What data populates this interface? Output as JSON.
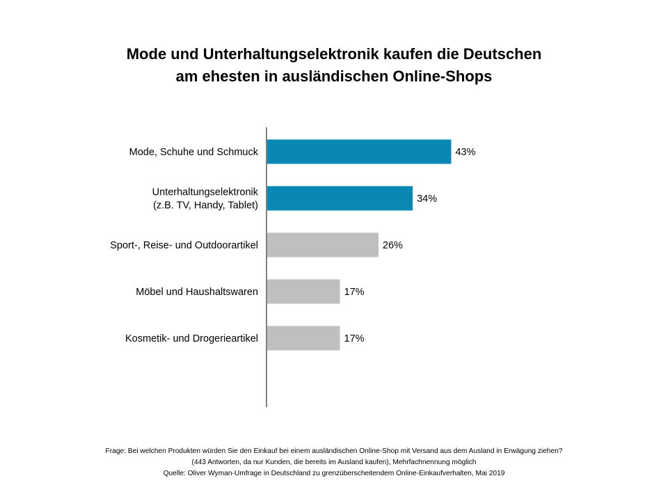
{
  "title": {
    "line1": "Mode und Unterhaltungselektronik kaufen die Deutschen",
    "line2": "am ehesten in ausländischen Online-Shops"
  },
  "chart_data": {
    "type": "bar",
    "orientation": "horizontal",
    "categories": [
      [
        "Mode, Schuhe und Schmuck"
      ],
      [
        "Unterhaltungselektronik",
        "(z.B. TV, Handy, Tablet)"
      ],
      [
        "Sport-, Reise- und Outdoorartikel"
      ],
      [
        "Möbel und Haushaltswaren"
      ],
      [
        "Kosmetik- und Drogerieartikel"
      ]
    ],
    "values": [
      43,
      34,
      26,
      17,
      17
    ],
    "value_labels": [
      "43%",
      "34%",
      "26%",
      "17%",
      "17%"
    ],
    "colors": [
      "#0a87b2",
      "#0a87b2",
      "#bfbfbf",
      "#bfbfbf",
      "#bfbfbf"
    ],
    "axis_color": "#000000",
    "xlim": [
      0,
      100
    ],
    "grid": false,
    "legend": false
  },
  "footnote": {
    "line1": "Frage: Bei welchen Produkten würden Sie den Einkauf bei einem ausländischen Online-Shop mit Versand aus dem Ausland in Erwägung ziehen?",
    "line2": "(443 Antworten, da nur Kunden, die bereits im Ausland kaufen), Mehrfachnennung möglich",
    "line3": "Quelle: Oliver Wyman-Umfrage in Deutschland zu grenzüberscheitendem Online-Einkaufverhalten, Mai 2019"
  }
}
